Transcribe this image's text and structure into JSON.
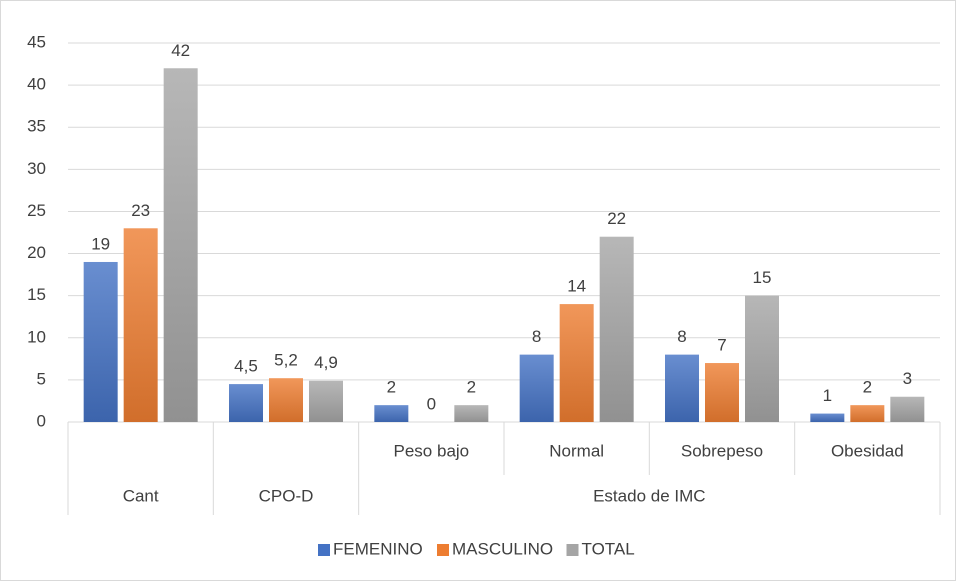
{
  "chart_data": {
    "type": "bar",
    "categories": [
      null,
      null,
      "Peso bajo",
      "Normal",
      "Sobrepeso",
      "Obesidad"
    ],
    "category_groups": [
      {
        "label": "Cant",
        "count": 1
      },
      {
        "label": "CPO-D",
        "count": 1
      },
      {
        "label": "Estado de IMC",
        "count": 4
      }
    ],
    "series": [
      {
        "name": "FEMENINO",
        "color": "#4472c4",
        "values": [
          19,
          4.5,
          2,
          8,
          8,
          1
        ],
        "value_labels": [
          "19",
          "4,5",
          "2",
          "8",
          "8",
          "1"
        ]
      },
      {
        "name": "MASCULINO",
        "color": "#ed7d31",
        "values": [
          23,
          5.2,
          0,
          14,
          7,
          2
        ],
        "value_labels": [
          "23",
          "5,2",
          "0",
          "14",
          "7",
          "2"
        ]
      },
      {
        "name": "TOTAL",
        "color": "#a5a5a5",
        "values": [
          42,
          4.9,
          2,
          22,
          15,
          3
        ],
        "value_labels": [
          "42",
          "4,9",
          "2",
          "22",
          "15",
          "3"
        ]
      }
    ],
    "ylim": [
      0,
      45
    ],
    "yticks": [
      0,
      5,
      10,
      15,
      20,
      25,
      30,
      35,
      40,
      45
    ],
    "grid": true,
    "legend": "bottom"
  }
}
